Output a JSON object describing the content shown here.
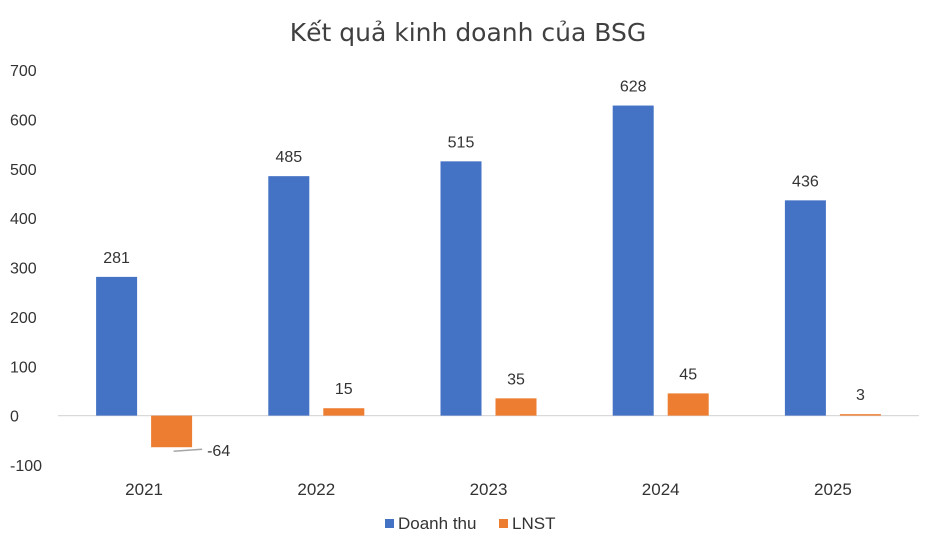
{
  "chart_data": {
    "type": "bar",
    "title": "Kết quả kinh doanh của BSG",
    "categories": [
      "2021",
      "2022",
      "2023",
      "2024",
      "2025"
    ],
    "series": [
      {
        "name": "Doanh thu",
        "color": "#4472c4",
        "values": [
          281,
          485,
          515,
          628,
          436
        ]
      },
      {
        "name": "LNST",
        "color": "#ed7d31",
        "values": [
          -64,
          15,
          35,
          45,
          3
        ]
      }
    ],
    "y_ticks": [
      -100,
      0,
      100,
      200,
      300,
      400,
      500,
      600,
      700
    ],
    "ylim": [
      -100,
      700
    ],
    "grid": false,
    "legend_position": "bottom"
  }
}
